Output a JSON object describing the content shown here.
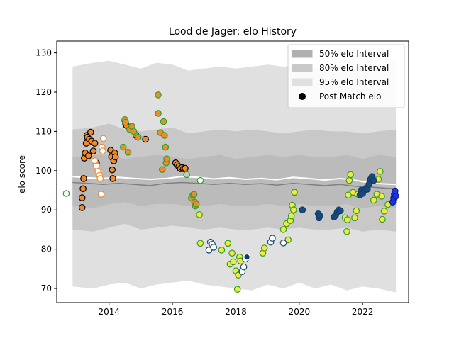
{
  "chart_data": {
    "type": "scatter",
    "title": "Lood de Jager: elo History",
    "xlabel": "",
    "ylabel": "elo score",
    "xlim": [
      2012.35,
      2023.45
    ],
    "ylim": [
      66.4,
      133.0
    ],
    "x_ticks": [
      2014,
      2016,
      2018,
      2020,
      2022
    ],
    "x_tick_labels": [
      "2014",
      "2016",
      "2018",
      "2020",
      "2022"
    ],
    "y_ticks": [
      70,
      80,
      90,
      100,
      110,
      120,
      130
    ],
    "y_tick_labels": [
      "70",
      "80",
      "90",
      "100",
      "110",
      "120",
      "130"
    ],
    "grid": false,
    "legend_position": "top-right",
    "legend": [
      {
        "label": "50% elo Interval",
        "kind": "band",
        "color": "#b0b0b0"
      },
      {
        "label": "80% elo Interval",
        "kind": "band",
        "color": "#c8c8c8"
      },
      {
        "label": "95% elo Interval",
        "kind": "band",
        "color": "#e0e0e0"
      },
      {
        "label": "Post Match elo",
        "kind": "marker",
        "color": "#000000"
      }
    ],
    "intervals": {
      "x": [
        2012.85,
        2013.5,
        2014.0,
        2014.5,
        2015.0,
        2015.5,
        2016.0,
        2016.5,
        2017.0,
        2017.5,
        2018.0,
        2018.5,
        2019.0,
        2019.5,
        2020.0,
        2020.5,
        2021.0,
        2021.5,
        2022.0,
        2022.5,
        2023.05
      ],
      "p95_upper": [
        126.5,
        127.5,
        128.0,
        127.0,
        126.0,
        127.5,
        127.0,
        125.5,
        126.0,
        126.5,
        126.0,
        126.5,
        127.0,
        126.5,
        127.0,
        126.0,
        126.5,
        127.0,
        126.0,
        126.5,
        128.0
      ],
      "p95_lower": [
        70.5,
        70.0,
        71.0,
        71.5,
        70.0,
        71.0,
        71.5,
        72.0,
        71.0,
        70.5,
        70.0,
        69.5,
        71.0,
        70.0,
        71.5,
        70.0,
        71.0,
        69.5,
        70.5,
        70.0,
        69.0
      ],
      "p80_upper": [
        110.5,
        111.0,
        112.0,
        110.5,
        110.0,
        110.5,
        111.0,
        109.5,
        110.0,
        110.5,
        110.0,
        110.5,
        110.0,
        109.5,
        110.0,
        110.5,
        110.0,
        110.0,
        109.5,
        110.0,
        110.5
      ],
      "p80_lower": [
        85.0,
        84.5,
        85.5,
        86.5,
        85.0,
        85.5,
        86.0,
        85.5,
        85.0,
        85.5,
        85.0,
        85.0,
        85.5,
        85.0,
        85.5,
        85.0,
        85.0,
        85.5,
        84.5,
        85.0,
        84.5
      ],
      "p50_upper": [
        103.5,
        104.0,
        104.0,
        103.0,
        103.5,
        104.0,
        103.5,
        103.0,
        103.5,
        104.0,
        103.0,
        103.5,
        104.0,
        103.5,
        104.0,
        103.5,
        103.5,
        104.0,
        103.0,
        104.0,
        103.5
      ],
      "p50_lower": [
        91.0,
        90.5,
        91.5,
        92.0,
        91.0,
        91.5,
        91.5,
        91.0,
        91.0,
        91.5,
        91.0,
        91.0,
        91.5,
        91.0,
        91.5,
        91.0,
        91.0,
        91.5,
        90.5,
        91.0,
        90.5
      ],
      "mean_x": [
        2012.85,
        2013.3,
        2013.8,
        2014.3,
        2014.8,
        2015.3,
        2015.8,
        2016.3,
        2016.8,
        2017.3,
        2017.8,
        2018.3,
        2018.8,
        2019.3,
        2019.8,
        2020.3,
        2020.8,
        2021.3,
        2021.8,
        2022.3,
        2022.8,
        2023.05
      ],
      "mean_white": [
        98.5,
        98.2,
        98.0,
        98.3,
        98.0,
        97.8,
        98.0,
        98.5,
        98.3,
        97.9,
        98.2,
        97.8,
        98.0,
        97.7,
        98.3,
        98.0,
        97.6,
        98.0,
        97.5,
        96.8,
        96.6,
        96.5
      ],
      "mean_gray": [
        97.0,
        96.8,
        96.5,
        96.8,
        96.5,
        96.2,
        96.8,
        97.0,
        96.8,
        96.5,
        96.8,
        96.5,
        96.7,
        96.3,
        96.8,
        96.5,
        96.2,
        96.5,
        96.0,
        95.8,
        95.5,
        95.5
      ]
    },
    "series": [
      {
        "face": "#ffffff",
        "edge": "#2ca02c",
        "points": [
          [
            2012.65,
            94.2
          ]
        ]
      },
      {
        "face": "#f08a2c",
        "edge": "#000000",
        "points": [
          [
            2013.15,
            90.6
          ],
          [
            2013.15,
            93.1
          ],
          [
            2013.18,
            95.4
          ],
          [
            2013.2,
            98.0
          ],
          [
            2013.22,
            103.2
          ],
          [
            2013.25,
            104.5
          ],
          [
            2013.28,
            107.0
          ],
          [
            2013.3,
            109.0
          ],
          [
            2013.32,
            108.5
          ],
          [
            2013.35,
            103.8
          ],
          [
            2013.38,
            108.0
          ],
          [
            2013.42,
            109.8
          ],
          [
            2013.45,
            107.5
          ],
          [
            2013.5,
            105.0
          ],
          [
            2013.55,
            107.0
          ],
          [
            2013.6,
            102.0
          ],
          [
            2014.05,
            105.2
          ],
          [
            2014.08,
            103.5
          ],
          [
            2014.1,
            100.2
          ],
          [
            2014.12,
            98.0
          ],
          [
            2014.15,
            102.5
          ],
          [
            2014.18,
            104.5
          ],
          [
            2014.2,
            103.5
          ],
          [
            2014.5,
            112.8
          ],
          [
            2014.52,
            112.0
          ],
          [
            2014.55,
            111.5
          ],
          [
            2014.85,
            109.0
          ],
          [
            2015.15,
            108.0
          ],
          [
            2016.1,
            102.0
          ],
          [
            2016.15,
            101.5
          ],
          [
            2016.2,
            101.0
          ],
          [
            2016.25,
            100.5
          ],
          [
            2016.3,
            100.8
          ],
          [
            2016.35,
            100.5
          ],
          [
            2016.4,
            100.6
          ]
        ]
      },
      {
        "face": "#ffffff",
        "edge": "#f08a2c",
        "points": [
          [
            2013.55,
            102.5
          ],
          [
            2013.6,
            101.2
          ],
          [
            2013.65,
            99.8
          ],
          [
            2013.7,
            98.8
          ],
          [
            2013.72,
            98.0
          ],
          [
            2013.75,
            94.0
          ],
          [
            2013.78,
            106.0
          ],
          [
            2013.8,
            105.0
          ],
          [
            2013.82,
            108.2
          ]
        ]
      },
      {
        "face": "#f08a2c",
        "edge": "#2ca02c",
        "points": [
          [
            2014.45,
            106.0
          ],
          [
            2014.5,
            113.0
          ],
          [
            2014.52,
            112.3
          ],
          [
            2014.6,
            104.7
          ],
          [
            2014.65,
            110.5
          ],
          [
            2014.72,
            111.3
          ],
          [
            2014.78,
            110.0
          ],
          [
            2014.92,
            108.5
          ],
          [
            2015.55,
            119.3
          ],
          [
            2015.55,
            114.6
          ],
          [
            2015.62,
            109.7
          ],
          [
            2015.68,
            100.3
          ],
          [
            2015.72,
            112.5
          ],
          [
            2015.75,
            109.0
          ],
          [
            2015.78,
            106.0
          ],
          [
            2015.8,
            102.0
          ],
          [
            2015.82,
            103.0
          ],
          [
            2016.6,
            93.0
          ],
          [
            2016.65,
            93.8
          ],
          [
            2016.68,
            94.0
          ],
          [
            2016.7,
            92.0
          ],
          [
            2016.72,
            91.0
          ],
          [
            2016.75,
            91.5
          ]
        ]
      },
      {
        "face": "#c8c8c8",
        "edge": "#2ca02c",
        "points": [
          [
            2016.45,
            99.0
          ]
        ]
      },
      {
        "face": "#f5e642",
        "edge": "#2ca02c",
        "points": [
          [
            2016.85,
            88.8
          ]
        ]
      },
      {
        "face": "#ffffff",
        "edge": "#2ca02c",
        "points": [
          [
            2016.88,
            97.5
          ]
        ]
      },
      {
        "face": "#f5e642",
        "edge": "#2ca02c",
        "points": [
          [
            2016.88,
            81.5
          ],
          [
            2017.55,
            79.8
          ],
          [
            2017.75,
            81.5
          ],
          [
            2017.82,
            76.2
          ],
          [
            2017.88,
            79.0
          ],
          [
            2017.92,
            76.8
          ],
          [
            2018.0,
            74.5
          ],
          [
            2018.05,
            69.8
          ],
          [
            2018.08,
            73.4
          ],
          [
            2018.12,
            78.0
          ],
          [
            2018.15,
            77.0
          ],
          [
            2018.85,
            79.0
          ],
          [
            2018.9,
            80.3
          ],
          [
            2019.5,
            85.0
          ],
          [
            2019.6,
            86.5
          ],
          [
            2019.65,
            82.4
          ],
          [
            2019.72,
            87.3
          ],
          [
            2019.75,
            88.5
          ],
          [
            2019.78,
            91.2
          ],
          [
            2019.82,
            90.0
          ],
          [
            2019.85,
            94.5
          ],
          [
            2021.45,
            88.0
          ],
          [
            2021.5,
            84.5
          ],
          [
            2021.52,
            87.5
          ],
          [
            2021.55,
            93.8
          ],
          [
            2021.58,
            97.5
          ],
          [
            2021.62,
            99.0
          ],
          [
            2021.7,
            94.5
          ],
          [
            2021.75,
            88.0
          ],
          [
            2021.8,
            89.8
          ],
          [
            2021.85,
            94.0
          ],
          [
            2022.35,
            92.5
          ],
          [
            2022.45,
            94.0
          ],
          [
            2022.5,
            97.8
          ],
          [
            2022.55,
            99.8
          ],
          [
            2022.6,
            93.5
          ],
          [
            2022.62,
            87.6
          ],
          [
            2022.68,
            89.7
          ],
          [
            2022.8,
            91.4
          ]
        ]
      },
      {
        "face": "#ffffff",
        "edge": "#1a4a7a",
        "points": [
          [
            2017.15,
            79.8
          ],
          [
            2017.2,
            81.8
          ],
          [
            2017.25,
            81.3
          ],
          [
            2017.3,
            80.5
          ],
          [
            2018.2,
            74.3
          ],
          [
            2018.25,
            75.5
          ],
          [
            2018.3,
            77.5
          ],
          [
            2019.1,
            81.8
          ],
          [
            2019.15,
            82.8
          ],
          [
            2019.5,
            81.6
          ]
        ]
      },
      {
        "face": "#0f3a6e",
        "edge": "#ffffff",
        "points": [
          [
            2018.35,
            78.0
          ]
        ]
      },
      {
        "face": "#1a4a7a",
        "edge": "#0f3a6e",
        "points": [
          [
            2020.1,
            90.0
          ],
          [
            2020.6,
            89.0
          ],
          [
            2020.62,
            88.0
          ],
          [
            2020.65,
            88.5
          ],
          [
            2021.1,
            88.2
          ],
          [
            2021.15,
            88.7
          ],
          [
            2021.2,
            89.5
          ],
          [
            2021.25,
            90.0
          ],
          [
            2021.3,
            89.8
          ],
          [
            2021.92,
            93.8
          ],
          [
            2021.95,
            95.0
          ],
          [
            2022.0,
            94.2
          ],
          [
            2022.05,
            95.0
          ],
          [
            2022.1,
            95.5
          ],
          [
            2022.15,
            95.3
          ],
          [
            2022.2,
            96.5
          ],
          [
            2022.25,
            97.8
          ],
          [
            2022.3,
            98.5
          ],
          [
            2022.35,
            97.5
          ]
        ]
      },
      {
        "face": "#1f33e6",
        "edge": "#0f1f8a",
        "points": [
          [
            2022.95,
            92.0
          ],
          [
            2022.98,
            93.0
          ],
          [
            2023.0,
            94.0
          ],
          [
            2023.02,
            94.8
          ],
          [
            2023.05,
            93.5
          ]
        ]
      }
    ]
  }
}
